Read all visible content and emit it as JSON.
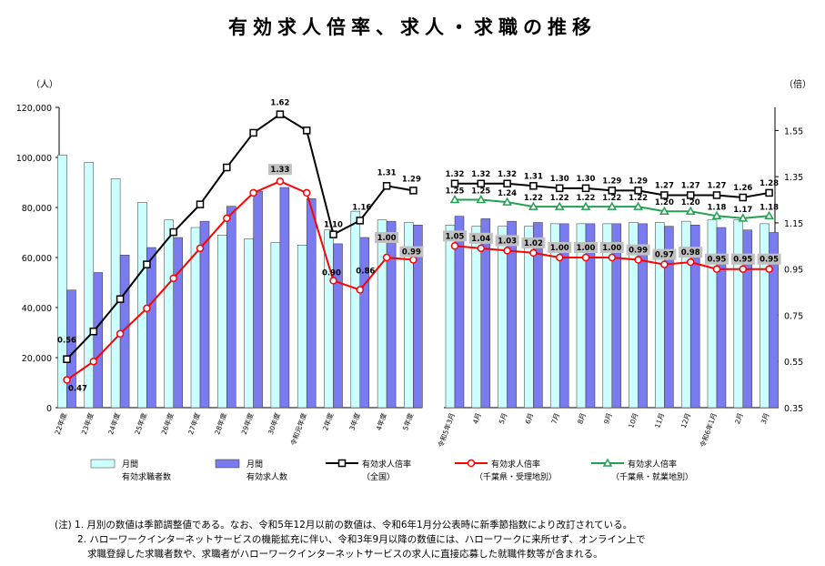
{
  "title": "有効求人倍率、求人・求職の推移",
  "axes": {
    "left_unit": "（人）",
    "right_unit": "（倍）",
    "left_ticks": [
      "0",
      "20,000",
      "40,000",
      "60,000",
      "80,000",
      "100,000",
      "120,000"
    ],
    "right_ticks": [
      "0.35",
      "0.55",
      "0.75",
      "0.95",
      "1.15",
      "1.35",
      "1.55"
    ]
  },
  "legend": {
    "applicants_l1": "月間",
    "applicants_l2": "有効求職者数",
    "openings_l1": "月間",
    "openings_l2": "有効求人数",
    "national_l1": "有効求人倍率",
    "national_l2": "（全国）",
    "chiba_office_l1": "有効求人倍率",
    "chiba_office_l2": "（千葉県・受理地別）",
    "chiba_work_l1": "有効求人倍率",
    "chiba_work_l2": "（千葉県・就業地別）"
  },
  "notes": {
    "line1": "(注) 1. 月別の数値は季節調整値である。なお、令和5年12月以前の数値は、令和6年1月分公表時に新季節指数により改訂されている。",
    "line2": "2. ハローワークインターネットサービスの機能拡充に伴い、令和3年9月以降の数値には、ハローワークに来所せず、オンライン上で",
    "line3": "求職登録した求職者数や、求職者がハローワークインターネットサービスの求人に直接応募した就職件数等が含まれる。"
  },
  "colors": {
    "applicants": "#ccffff",
    "openings": "#7b7bf0",
    "national": "#000000",
    "chiba_office": "#ff0000",
    "chiba_work": "#20a050",
    "highlight_box": "#c0c0c0"
  },
  "chart_data": {
    "type": "bar+line",
    "left_axis_range": [
      0,
      120000
    ],
    "right_axis_range": [
      0.35,
      1.65
    ],
    "annual": {
      "categories": [
        "22年度",
        "23年度",
        "24年度",
        "25年度",
        "26年度",
        "27年度",
        "28年度",
        "29年度",
        "30年度",
        "令和元年度",
        "2年度",
        "3年度",
        "4年度",
        "5年度"
      ],
      "applicants": [
        101000,
        98000,
        91500,
        82000,
        75000,
        72000,
        69000,
        67500,
        66000,
        65000,
        71000,
        78500,
        75000,
        74000
      ],
      "openings": [
        47000,
        54000,
        61000,
        64000,
        68000,
        74500,
        80500,
        86500,
        88000,
        83500,
        65500,
        68000,
        74500,
        73000
      ],
      "national": [
        0.56,
        0.68,
        0.82,
        0.97,
        1.11,
        1.23,
        1.39,
        1.54,
        1.62,
        1.55,
        1.1,
        1.16,
        1.31,
        1.29
      ],
      "chiba_office": [
        0.47,
        0.55,
        0.67,
        0.78,
        0.91,
        1.04,
        1.17,
        1.28,
        1.33,
        1.28,
        0.9,
        0.86,
        1.0,
        0.99
      ]
    },
    "monthly": {
      "categories": [
        "令和5年3月",
        "4月",
        "5月",
        "6月",
        "7月",
        "8月",
        "9月",
        "10月",
        "11月",
        "12月",
        "令和6年1月",
        "2月",
        "3月"
      ],
      "applicants": [
        73000,
        72500,
        72500,
        72500,
        73500,
        73500,
        73500,
        74000,
        74000,
        74500,
        75000,
        75000,
        73500
      ],
      "openings": [
        76500,
        75500,
        74500,
        74000,
        73500,
        73500,
        73500,
        73500,
        72500,
        73000,
        72000,
        71000,
        70000
      ],
      "national": [
        1.32,
        1.32,
        1.32,
        1.31,
        1.3,
        1.3,
        1.29,
        1.29,
        1.27,
        1.27,
        1.27,
        1.26,
        1.28
      ],
      "chiba_work": [
        1.25,
        1.25,
        1.24,
        1.22,
        1.22,
        1.22,
        1.22,
        1.22,
        1.2,
        1.2,
        1.18,
        1.17,
        1.18
      ],
      "chiba_office": [
        1.05,
        1.04,
        1.03,
        1.02,
        1.0,
        1.0,
        1.0,
        0.99,
        0.97,
        0.98,
        0.95,
        0.95,
        0.95
      ]
    }
  }
}
